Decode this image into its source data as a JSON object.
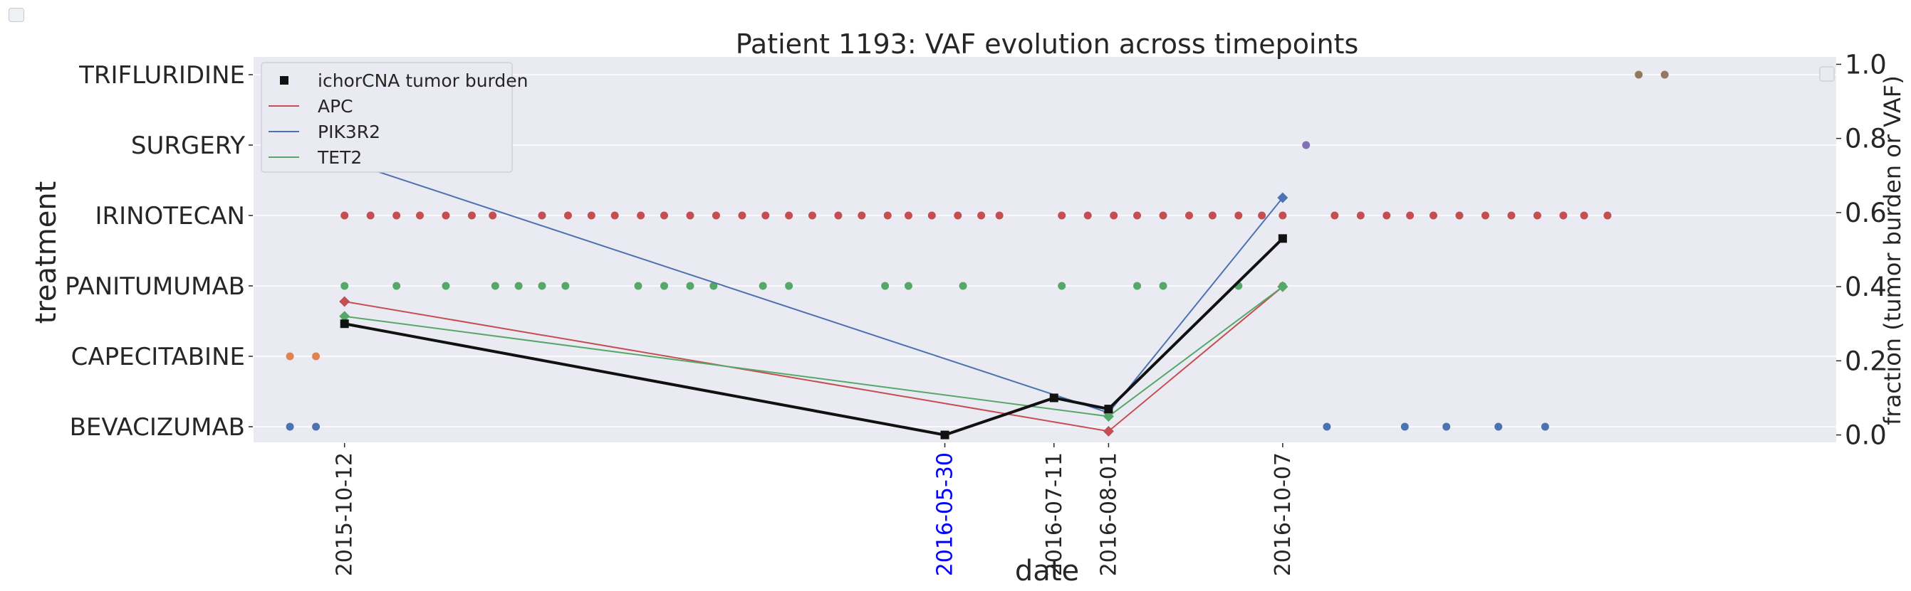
{
  "chart_data": {
    "type": "line",
    "title": "Patient 1193: VAF evolution across timepoints",
    "xlabel": "date",
    "ylabel_left": "treatment",
    "ylabel_right": "fraction (tumor burden or VAF)",
    "x_ticks": [
      "2015-10-12",
      "2016-05-30",
      "2016-07-11",
      "2016-08-01",
      "2016-10-07"
    ],
    "x_tick_colors": {
      "2016-05-30": "#0000ff"
    },
    "x_range": [
      "2015-09-07",
      "2017-05-08"
    ],
    "right_ylim": [
      -0.02,
      1.02
    ],
    "right_yticks": [
      "0.0",
      "0.2",
      "0.4",
      "0.6",
      "0.8",
      "1.0"
    ],
    "grid": true,
    "legend_position": "top-left",
    "treatments": [
      "BEVACIZUMAB",
      "CAPECITABINE",
      "PANITUMUMAB",
      "IRINOTECAN",
      "SURGERY",
      "TRIFLURIDINE"
    ],
    "treatment_colors": {
      "BEVACIZUMAB": "#4c72b0",
      "CAPECITABINE": "#dd8452",
      "PANITUMUMAB": "#55a868",
      "IRINOTECAN": "#c44e52",
      "SURGERY": "#8172b3",
      "TRIFLURIDINE": "#937860"
    },
    "treatment_events": {
      "BEVACIZUMAB": [
        "2015-09-21",
        "2015-10-01",
        "2016-10-24",
        "2016-11-23",
        "2016-12-09",
        "2016-12-29",
        "2017-01-16"
      ],
      "CAPECITABINE": [
        "2015-09-21",
        "2015-10-01"
      ],
      "PANITUMUMAB": [
        "2015-10-12",
        "2015-11-01",
        "2015-11-20",
        "2015-12-09",
        "2015-12-18",
        "2015-12-27",
        "2016-01-05",
        "2016-02-02",
        "2016-02-12",
        "2016-02-22",
        "2016-03-02",
        "2016-03-21",
        "2016-03-31",
        "2016-05-07",
        "2016-05-16",
        "2016-06-06",
        "2016-07-14",
        "2016-08-12",
        "2016-08-22",
        "2016-09-20",
        "2016-10-07"
      ],
      "IRINOTECAN": [
        "2015-10-12",
        "2015-10-22",
        "2015-11-01",
        "2015-11-10",
        "2015-11-20",
        "2015-11-30",
        "2015-12-08",
        "2015-12-27",
        "2016-01-06",
        "2016-01-15",
        "2016-01-24",
        "2016-02-03",
        "2016-02-12",
        "2016-02-22",
        "2016-03-03",
        "2016-03-13",
        "2016-03-22",
        "2016-03-31",
        "2016-04-09",
        "2016-04-19",
        "2016-04-28",
        "2016-05-08",
        "2016-05-16",
        "2016-05-25",
        "2016-06-04",
        "2016-06-13",
        "2016-06-20",
        "2016-07-14",
        "2016-07-24",
        "2016-08-03",
        "2016-08-12",
        "2016-08-22",
        "2016-09-01",
        "2016-09-10",
        "2016-09-20",
        "2016-09-29",
        "2016-10-07",
        "2016-10-27",
        "2016-11-06",
        "2016-11-16",
        "2016-11-25",
        "2016-12-04",
        "2016-12-14",
        "2016-12-24",
        "2017-01-03",
        "2017-01-13",
        "2017-01-23",
        "2017-01-31",
        "2017-02-09"
      ],
      "SURGERY": [
        "2016-10-16"
      ],
      "TRIFLURIDINE": [
        "2017-02-21",
        "2017-03-03"
      ]
    },
    "series": [
      {
        "name": "ichorCNA tumor burden",
        "color": "#111111",
        "marker": "square",
        "x": [
          "2015-10-12",
          "2016-05-30",
          "2016-07-11",
          "2016-08-01",
          "2016-10-07"
        ],
        "values": [
          0.3,
          0.0,
          0.1,
          0.07,
          0.53
        ]
      },
      {
        "name": "APC",
        "color": "#c44e52",
        "marker": "diamond",
        "x": [
          "2015-10-12",
          "2016-08-01",
          "2016-10-07"
        ],
        "values": [
          0.36,
          0.01,
          0.4
        ]
      },
      {
        "name": "PIK3R2",
        "color": "#4c72b0",
        "marker": "diamond",
        "x": [
          "2015-10-12",
          "2016-08-01",
          "2016-10-07"
        ],
        "values": [
          0.74,
          0.06,
          0.64
        ]
      },
      {
        "name": "TET2",
        "color": "#55a868",
        "marker": "diamond",
        "x": [
          "2015-10-12",
          "2016-08-01",
          "2016-10-07"
        ],
        "values": [
          0.32,
          0.05,
          0.4
        ]
      }
    ]
  }
}
